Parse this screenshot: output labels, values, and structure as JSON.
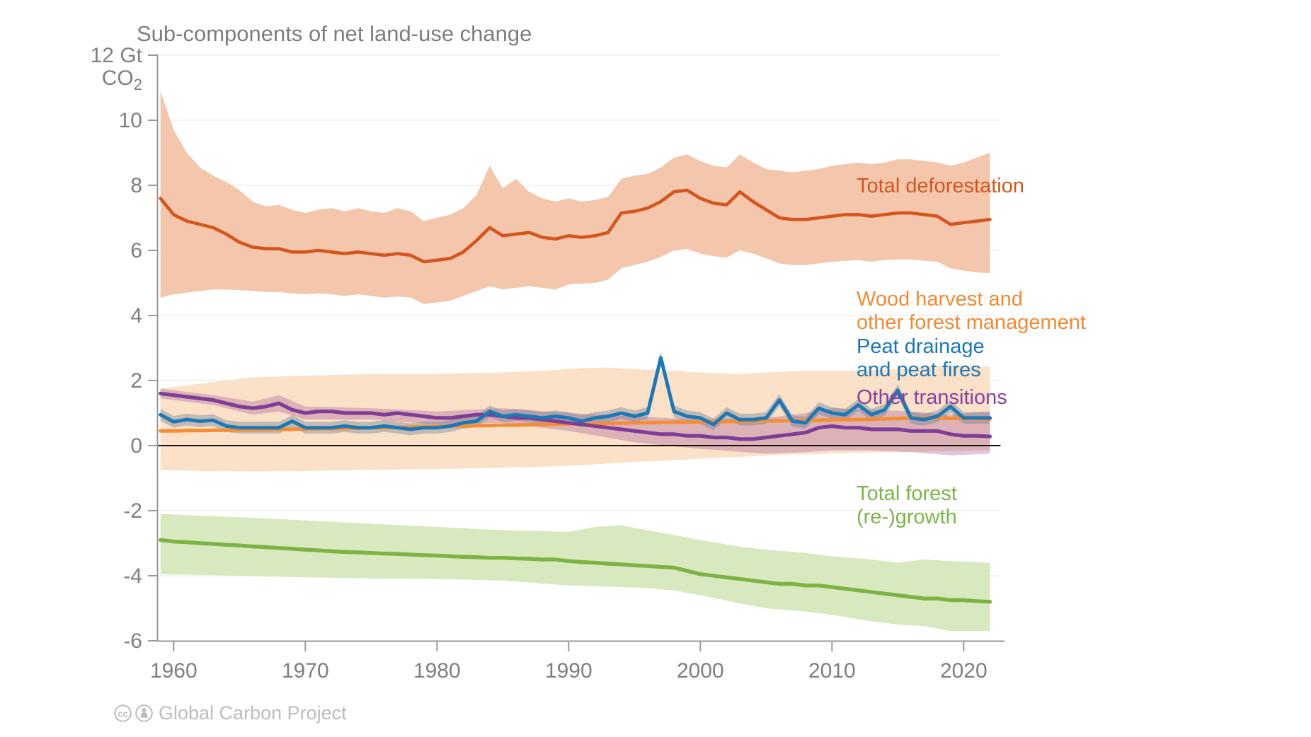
{
  "title": "Sub-components of net land-use change",
  "attribution": {
    "text": "Global Carbon Project"
  },
  "legend": [
    {
      "series": "total-deforestation",
      "color": "#d4551e",
      "lines": [
        "Total deforestation"
      ]
    },
    {
      "series": "wood-harvest",
      "color": "#f18a34",
      "lines": [
        "Wood harvest and",
        "other forest management"
      ]
    },
    {
      "series": "peat",
      "color": "#1878b8",
      "lines": [
        "Peat drainage",
        "and peat fires"
      ]
    },
    {
      "series": "other-transitions",
      "color": "#8a3f9e",
      "lines": [
        "Other transitions"
      ]
    },
    {
      "series": "forest-regrowth",
      "color": "#7ab648",
      "lines": [
        "Total forest",
        "(re-)growth"
      ]
    }
  ],
  "chart_data": {
    "type": "line",
    "title": "Sub-components of net land-use change",
    "ylabel_unit": {
      "main": "CO",
      "sub": "2"
    },
    "ylim": [
      -6,
      12
    ],
    "xlim": [
      1958.8,
      2022.8
    ],
    "grid": true,
    "legend_position": "right",
    "y_ticks": {
      "values": [
        12,
        10,
        8,
        6,
        4,
        2,
        0,
        -2,
        -4,
        -6
      ],
      "labels": [
        "12 Gt",
        "10",
        "8",
        "6",
        "4",
        "2",
        "0",
        "-2",
        "-4",
        "-6"
      ]
    },
    "x_ticks": {
      "values": [
        1960,
        1970,
        1980,
        1990,
        2000,
        2010,
        2020
      ],
      "labels": [
        "1960",
        "1970",
        "1980",
        "1990",
        "2000",
        "2010",
        "2020"
      ]
    },
    "zero_line": {
      "value": 0,
      "color": "#111111"
    },
    "year_start": 1959,
    "series": [
      {
        "id": "wood-harvest",
        "label": "Wood harvest and other forest management",
        "color": "#f68d33",
        "band_color": "#fae1c8",
        "values": [
          0.45,
          0.45,
          0.46,
          0.46,
          0.47,
          0.47,
          0.48,
          0.48,
          0.49,
          0.5,
          0.5,
          0.51,
          0.52,
          0.52,
          0.53,
          0.54,
          0.55,
          0.55,
          0.56,
          0.57,
          0.58,
          0.59,
          0.6,
          0.6,
          0.61,
          0.62,
          0.63,
          0.63,
          0.64,
          0.65,
          0.66,
          0.67,
          0.67,
          0.68,
          0.68,
          0.69,
          0.7,
          0.7,
          0.71,
          0.72,
          0.72,
          0.73,
          0.73,
          0.74,
          0.74,
          0.75,
          0.76,
          0.76,
          0.77,
          0.78,
          0.78,
          0.79,
          0.8,
          0.8,
          0.81,
          0.82,
          0.83,
          0.85,
          0.85,
          0.85,
          0.84,
          0.83,
          0.82,
          0.82
        ],
        "band": {
          "years": [
            1959,
            1962,
            1966,
            1970,
            1975,
            1980,
            1985,
            1988,
            1991,
            1993,
            1995,
            1998,
            2000,
            2003,
            2005,
            2008,
            2012,
            2015,
            2018,
            2020,
            2022
          ],
          "hi": [
            1.75,
            1.9,
            2.1,
            2.15,
            2.2,
            2.2,
            2.25,
            2.3,
            2.38,
            2.4,
            2.35,
            2.3,
            2.25,
            2.2,
            2.25,
            2.3,
            2.3,
            2.35,
            2.45,
            2.45,
            2.42
          ],
          "lo": [
            -0.75,
            -0.78,
            -0.8,
            -0.78,
            -0.75,
            -0.72,
            -0.68,
            -0.65,
            -0.6,
            -0.55,
            -0.5,
            -0.45,
            -0.4,
            -0.35,
            -0.3,
            -0.27,
            -0.22,
            -0.2,
            -0.18,
            -0.16,
            -0.15
          ]
        }
      },
      {
        "id": "total-deforestation",
        "label": "Total deforestation",
        "color": "#d4551e",
        "band_color": "#f4c6ab",
        "values": [
          7.6,
          7.1,
          6.9,
          6.8,
          6.7,
          6.5,
          6.25,
          6.1,
          6.05,
          6.05,
          5.95,
          5.95,
          6.0,
          5.95,
          5.9,
          5.95,
          5.9,
          5.85,
          5.9,
          5.85,
          5.65,
          5.7,
          5.75,
          5.95,
          6.3,
          6.7,
          6.45,
          6.5,
          6.55,
          6.4,
          6.35,
          6.45,
          6.4,
          6.45,
          6.55,
          7.15,
          7.2,
          7.3,
          7.5,
          7.8,
          7.85,
          7.6,
          7.45,
          7.4,
          7.8,
          7.5,
          7.25,
          7.0,
          6.95,
          6.95,
          7.0,
          7.05,
          7.1,
          7.1,
          7.05,
          7.1,
          7.15,
          7.15,
          7.1,
          7.05,
          6.8,
          6.85,
          6.9,
          6.95
        ],
        "band": {
          "hi": [
            10.9,
            9.7,
            9.0,
            8.55,
            8.3,
            8.1,
            7.85,
            7.5,
            7.35,
            7.4,
            7.25,
            7.15,
            7.25,
            7.3,
            7.2,
            7.3,
            7.2,
            7.15,
            7.3,
            7.2,
            6.9,
            7.0,
            7.1,
            7.3,
            7.7,
            8.6,
            7.9,
            8.2,
            7.8,
            7.6,
            7.5,
            7.6,
            7.5,
            7.55,
            7.65,
            8.2,
            8.3,
            8.35,
            8.55,
            8.85,
            8.95,
            8.75,
            8.6,
            8.55,
            8.95,
            8.7,
            8.5,
            8.45,
            8.4,
            8.45,
            8.5,
            8.6,
            8.65,
            8.7,
            8.65,
            8.7,
            8.8,
            8.8,
            8.75,
            8.7,
            8.6,
            8.7,
            8.85,
            9.0
          ],
          "lo": [
            4.55,
            4.65,
            4.7,
            4.75,
            4.8,
            4.8,
            4.78,
            4.75,
            4.72,
            4.72,
            4.68,
            4.65,
            4.68,
            4.65,
            4.6,
            4.65,
            4.6,
            4.55,
            4.58,
            4.55,
            4.35,
            4.4,
            4.45,
            4.6,
            4.75,
            4.9,
            4.8,
            4.85,
            4.9,
            4.85,
            4.8,
            4.95,
            4.98,
            5.0,
            5.1,
            5.45,
            5.55,
            5.65,
            5.8,
            6.0,
            6.05,
            5.9,
            5.82,
            5.78,
            6.0,
            5.9,
            5.75,
            5.6,
            5.55,
            5.55,
            5.6,
            5.65,
            5.68,
            5.7,
            5.65,
            5.7,
            5.72,
            5.72,
            5.68,
            5.65,
            5.45,
            5.38,
            5.32,
            5.3
          ]
        }
      },
      {
        "id": "other-transitions",
        "label": "Other transitions",
        "color": "#7f3d97",
        "band_color": "rgba(160,80,150,0.32)",
        "values": [
          1.6,
          1.55,
          1.5,
          1.45,
          1.4,
          1.3,
          1.2,
          1.15,
          1.2,
          1.3,
          1.1,
          1.0,
          1.05,
          1.05,
          1.0,
          1.0,
          1.0,
          0.95,
          1.0,
          0.95,
          0.9,
          0.85,
          0.85,
          0.9,
          0.95,
          0.95,
          0.9,
          0.85,
          0.85,
          0.8,
          0.75,
          0.7,
          0.65,
          0.6,
          0.55,
          0.5,
          0.45,
          0.4,
          0.35,
          0.35,
          0.3,
          0.3,
          0.25,
          0.25,
          0.2,
          0.2,
          0.25,
          0.3,
          0.35,
          0.4,
          0.55,
          0.6,
          0.55,
          0.55,
          0.5,
          0.5,
          0.5,
          0.45,
          0.45,
          0.45,
          0.35,
          0.3,
          0.3,
          0.28
        ],
        "band": {
          "years": [
            1959,
            1963,
            1966,
            1968,
            1970,
            1975,
            1980,
            1985,
            1990,
            1995,
            2000,
            2005,
            2008,
            2010,
            2013,
            2016,
            2019,
            2022
          ],
          "hi": [
            1.75,
            1.55,
            1.35,
            1.55,
            1.2,
            1.15,
            1.05,
            1.15,
            1.0,
            0.9,
            0.8,
            0.85,
            1.0,
            1.15,
            1.1,
            1.05,
            0.95,
            1.05
          ],
          "lo": [
            1.45,
            1.25,
            0.95,
            1.05,
            0.8,
            0.8,
            0.65,
            0.7,
            0.45,
            0.1,
            -0.1,
            -0.25,
            -0.2,
            -0.15,
            -0.15,
            -0.2,
            -0.3,
            -0.25
          ]
        }
      },
      {
        "id": "peat",
        "label": "Peat drainage and peat fires",
        "color": "#1c79b8",
        "band_color": "rgba(110,125,145,0.40)",
        "band_delta": 0.18,
        "values": [
          0.95,
          0.73,
          0.8,
          0.75,
          0.78,
          0.6,
          0.55,
          0.55,
          0.55,
          0.55,
          0.75,
          0.55,
          0.55,
          0.55,
          0.6,
          0.55,
          0.55,
          0.6,
          0.55,
          0.5,
          0.55,
          0.55,
          0.6,
          0.7,
          0.75,
          1.05,
          0.9,
          0.95,
          0.9,
          0.85,
          0.9,
          0.85,
          0.75,
          0.85,
          0.9,
          1.0,
          0.9,
          1.0,
          2.7,
          1.05,
          0.9,
          0.85,
          0.65,
          1.0,
          0.8,
          0.8,
          0.85,
          1.4,
          0.75,
          0.7,
          1.15,
          1.0,
          0.95,
          1.25,
          0.95,
          1.1,
          1.7,
          0.85,
          0.8,
          0.9,
          1.2,
          0.85,
          0.85,
          0.85
        ]
      },
      {
        "id": "forest-regrowth",
        "label": "Total forest (re-)growth",
        "color": "#7cb342",
        "band_color": "#d8e8bf",
        "values": [
          -2.9,
          -2.95,
          -2.97,
          -3.0,
          -3.02,
          -3.05,
          -3.07,
          -3.1,
          -3.12,
          -3.15,
          -3.17,
          -3.2,
          -3.22,
          -3.25,
          -3.27,
          -3.28,
          -3.3,
          -3.32,
          -3.33,
          -3.35,
          -3.37,
          -3.38,
          -3.4,
          -3.42,
          -3.43,
          -3.45,
          -3.45,
          -3.47,
          -3.48,
          -3.5,
          -3.5,
          -3.55,
          -3.58,
          -3.6,
          -3.63,
          -3.65,
          -3.68,
          -3.7,
          -3.73,
          -3.75,
          -3.85,
          -3.95,
          -4.0,
          -4.05,
          -4.1,
          -4.15,
          -4.2,
          -4.25,
          -4.25,
          -4.3,
          -4.3,
          -4.35,
          -4.4,
          -4.45,
          -4.5,
          -4.55,
          -4.6,
          -4.65,
          -4.7,
          -4.7,
          -4.75,
          -4.75,
          -4.78,
          -4.8
        ],
        "band": {
          "years": [
            1959,
            1965,
            1970,
            1975,
            1980,
            1985,
            1990,
            1992,
            1994,
            1996,
            1998,
            2000,
            2003,
            2005,
            2008,
            2010,
            2013,
            2015,
            2017,
            2019,
            2022
          ],
          "hi": [
            -2.1,
            -2.2,
            -2.3,
            -2.4,
            -2.5,
            -2.6,
            -2.65,
            -2.5,
            -2.45,
            -2.6,
            -2.75,
            -2.9,
            -3.1,
            -3.2,
            -3.3,
            -3.4,
            -3.5,
            -3.6,
            -3.5,
            -3.55,
            -3.6
          ],
          "lo": [
            -3.95,
            -4.0,
            -4.05,
            -4.08,
            -4.1,
            -4.15,
            -4.3,
            -4.32,
            -4.35,
            -4.38,
            -4.45,
            -4.6,
            -4.85,
            -5.0,
            -5.1,
            -5.2,
            -5.4,
            -5.5,
            -5.55,
            -5.7,
            -5.7
          ]
        }
      }
    ]
  }
}
